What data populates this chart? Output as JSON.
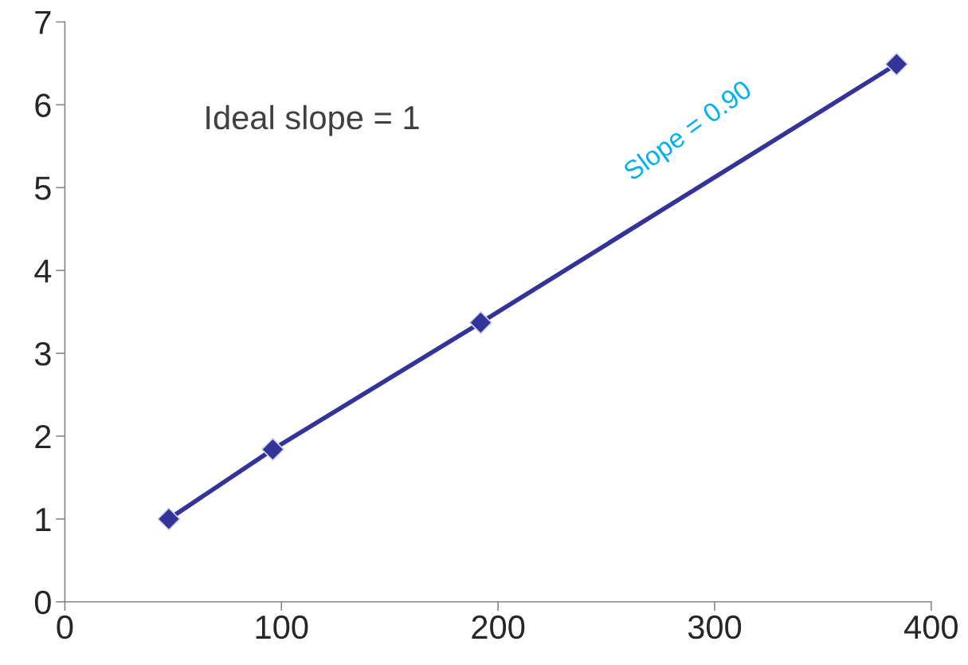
{
  "chart_data": {
    "type": "line",
    "x": [
      48,
      96,
      192,
      384
    ],
    "series": [
      {
        "color": "#333399",
        "values": [
          1.0,
          1.84,
          3.37,
          6.49
        ]
      }
    ],
    "xlim": [
      0,
      400
    ],
    "xticks": [
      0,
      100,
      200,
      300,
      400
    ],
    "ylim": [
      0,
      7
    ],
    "yticks": [
      0,
      1,
      2,
      3,
      4,
      5,
      6,
      7
    ],
    "grid": false,
    "marker": "diamond",
    "line_style": "solid",
    "annotations": [
      "Ideal slope = 1",
      "Slope = 0.90"
    ]
  }
}
